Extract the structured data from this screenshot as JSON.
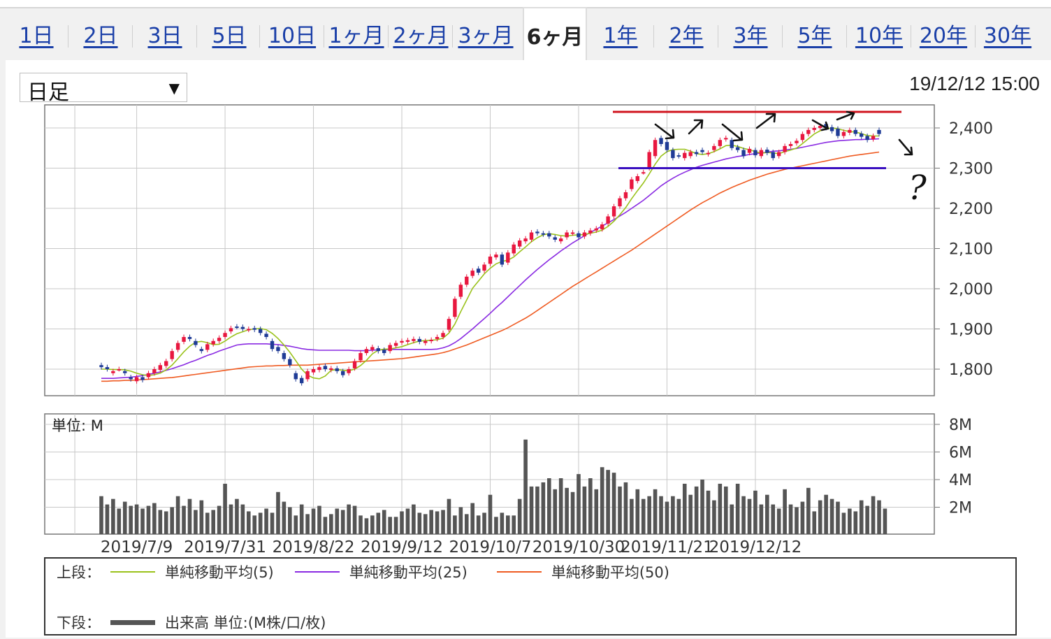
{
  "tabs": [
    "1日",
    "2日",
    "3日",
    "5日",
    "10日",
    "1ヶ月",
    "2ヶ月",
    "3ヶ月",
    "6ヶ月",
    "1年",
    "2年",
    "3年",
    "5年",
    "10年",
    "20年",
    "30年"
  ],
  "active_tab": "6ヶ月",
  "interval_select": {
    "value": "日足",
    "arrow": "▼"
  },
  "timestamp": "19/12/12 15:00",
  "volume_unit_label": "単位: M",
  "colors": {
    "up": "#e8173f",
    "down": "#1f3b96",
    "ma5": "#9ac21b",
    "ma25": "#8a2be2",
    "ma50": "#ef5b22",
    "volume": "#555555",
    "resistance": "#d0141e",
    "support": "#3a10c0",
    "annotation": "#111111"
  },
  "legend": {
    "upper_label": "上段：",
    "lower_label": "下段：",
    "ma5": "単純移動平均(5)",
    "ma25": "単純移動平均(25)",
    "ma50": "単純移動平均(50)",
    "volume": "出来高 単位:(M株/口/枚)"
  },
  "annotations": {
    "question": "?",
    "resistance_level": 2440,
    "support_level": 2300
  },
  "chart_data": [
    {
      "type": "candlestick",
      "y_ticks": [
        1800,
        1900,
        2000,
        2100,
        2200,
        2300,
        2400
      ],
      "y_tick_labels": [
        "1,800",
        "1,900",
        "2,000",
        "2,100",
        "2,200",
        "2,300",
        "2,400"
      ],
      "ylim": [
        1740,
        2460
      ],
      "x_tick_labels": [
        "2019/7/9",
        "2019/7/31",
        "2019/8/22",
        "2019/9/12",
        "2019/10/7",
        "2019/10/30",
        "2019/11/21",
        "2019/12/12"
      ],
      "x_tick_index": [
        6,
        21,
        36,
        51,
        66,
        81,
        96,
        111
      ],
      "grid": true,
      "closes": [
        1805,
        1800,
        1795,
        1800,
        1790,
        1775,
        1780,
        1773,
        1790,
        1800,
        1810,
        1820,
        1845,
        1865,
        1880,
        1875,
        1860,
        1845,
        1862,
        1870,
        1878,
        1890,
        1902,
        1905,
        1900,
        1900,
        1898,
        1890,
        1880,
        1850,
        1845,
        1825,
        1810,
        1775,
        1765,
        1795,
        1800,
        1805,
        1800,
        1802,
        1795,
        1785,
        1800,
        1820,
        1840,
        1850,
        1855,
        1845,
        1840,
        1860,
        1865,
        1870,
        1872,
        1875,
        1868,
        1870,
        1873,
        1880,
        1890,
        1925,
        1975,
        2010,
        2030,
        2045,
        2040,
        2060,
        2080,
        2085,
        2060,
        2090,
        2110,
        2120,
        2125,
        2140,
        2138,
        2135,
        2130,
        2122,
        2125,
        2140,
        2140,
        2128,
        2140,
        2145,
        2150,
        2160,
        2180,
        2205,
        2225,
        2240,
        2272,
        2280,
        2290,
        2340,
        2370,
        2360,
        2345,
        2325,
        2330,
        2338,
        2340,
        2335,
        2340,
        2338,
        2355,
        2370,
        2375,
        2350,
        2345,
        2330,
        2348,
        2332,
        2345,
        2338,
        2325,
        2340,
        2355,
        2360,
        2368,
        2385,
        2395,
        2400,
        2405,
        2400,
        2392,
        2380,
        2390,
        2395,
        2385,
        2378,
        2370,
        2380,
        2385
      ],
      "opens": [
        1810,
        1805,
        1790,
        1800,
        1795,
        1780,
        1770,
        1780,
        1780,
        1790,
        1798,
        1808,
        1825,
        1848,
        1868,
        1880,
        1870,
        1850,
        1848,
        1862,
        1870,
        1880,
        1894,
        1906,
        1905,
        1898,
        1902,
        1900,
        1888,
        1870,
        1855,
        1840,
        1825,
        1790,
        1778,
        1775,
        1792,
        1798,
        1808,
        1798,
        1802,
        1795,
        1790,
        1802,
        1822,
        1840,
        1848,
        1852,
        1848,
        1845,
        1858,
        1866,
        1868,
        1870,
        1875,
        1865,
        1870,
        1875,
        1880,
        1898,
        1930,
        1980,
        2010,
        2032,
        2050,
        2045,
        2062,
        2078,
        2085,
        2065,
        2088,
        2105,
        2118,
        2122,
        2142,
        2138,
        2138,
        2128,
        2118,
        2128,
        2138,
        2138,
        2130,
        2138,
        2145,
        2148,
        2162,
        2180,
        2205,
        2225,
        2248,
        2268,
        2290,
        2300,
        2330,
        2375,
        2365,
        2345,
        2332,
        2325,
        2330,
        2340,
        2345,
        2335,
        2345,
        2355,
        2372,
        2370,
        2352,
        2345,
        2338,
        2345,
        2330,
        2346,
        2340,
        2330,
        2340,
        2355,
        2362,
        2370,
        2385,
        2395,
        2400,
        2410,
        2402,
        2398,
        2380,
        2388,
        2395,
        2386,
        2380,
        2372,
        2395
      ],
      "ma5": [
        1800,
        1800,
        1799,
        1799,
        1798,
        1795,
        1790,
        1786,
        1784,
        1786,
        1790,
        1798,
        1810,
        1826,
        1843,
        1857,
        1867,
        1869,
        1866,
        1861,
        1862,
        1870,
        1880,
        1888,
        1893,
        1898,
        1900,
        1901,
        1898,
        1889,
        1876,
        1860,
        1842,
        1821,
        1800,
        1785,
        1778,
        1776,
        1783,
        1797,
        1799,
        1797,
        1796,
        1800,
        1809,
        1822,
        1838,
        1847,
        1850,
        1850,
        1853,
        1856,
        1861,
        1866,
        1870,
        1871,
        1872,
        1873,
        1877,
        1890,
        1912,
        1943,
        1972,
        2001,
        2019,
        2037,
        2051,
        2062,
        2068,
        2071,
        2079,
        2092,
        2104,
        2117,
        2127,
        2134,
        2137,
        2135,
        2132,
        2131,
        2133,
        2134,
        2135,
        2138,
        2141,
        2146,
        2155,
        2168,
        2184,
        2202,
        2224,
        2244,
        2263,
        2286,
        2310,
        2330,
        2341,
        2346,
        2347,
        2347,
        2342,
        2336,
        2334,
        2336,
        2341,
        2348,
        2356,
        2357,
        2354,
        2349,
        2346,
        2341,
        2337,
        2339,
        2338,
        2336,
        2341,
        2345,
        2350,
        2361,
        2373,
        2385,
        2393,
        2398,
        2400,
        2398,
        2394,
        2391,
        2390,
        2386,
        2381,
        2380,
        2380
      ],
      "ma25": [
        1777,
        1777,
        1777,
        1778,
        1779,
        1780,
        1782,
        1784,
        1787,
        1790,
        1793,
        1797,
        1801,
        1806,
        1811,
        1817,
        1822,
        1828,
        1834,
        1839,
        1845,
        1850,
        1855,
        1860,
        1862,
        1863,
        1863,
        1863,
        1863,
        1862,
        1861,
        1859,
        1857,
        1854,
        1851,
        1849,
        1848,
        1847,
        1847,
        1847,
        1847,
        1847,
        1847,
        1846,
        1846,
        1846,
        1847,
        1848,
        1848,
        1849,
        1849,
        1849,
        1849,
        1849,
        1849,
        1849,
        1849,
        1850,
        1853,
        1858,
        1866,
        1876,
        1888,
        1900,
        1913,
        1926,
        1939,
        1953,
        1966,
        1980,
        1994,
        2008,
        2022,
        2035,
        2048,
        2060,
        2072,
        2083,
        2094,
        2104,
        2114,
        2123,
        2132,
        2140,
        2148,
        2156,
        2164,
        2172,
        2181,
        2190,
        2200,
        2210,
        2220,
        2232,
        2244,
        2256,
        2266,
        2275,
        2283,
        2290,
        2296,
        2302,
        2307,
        2311,
        2315,
        2319,
        2323,
        2326,
        2329,
        2331,
        2334,
        2336,
        2338,
        2340,
        2342,
        2343,
        2345,
        2347,
        2349,
        2352,
        2355,
        2358,
        2361,
        2364,
        2366,
        2368,
        2369,
        2370,
        2371,
        2371,
        2372,
        2372,
        2373
      ],
      "ma50": [
        1770,
        1770,
        1771,
        1771,
        1772,
        1772,
        1773,
        1774,
        1775,
        1776,
        1777,
        1778,
        1779,
        1781,
        1783,
        1785,
        1787,
        1789,
        1791,
        1793,
        1795,
        1797,
        1799,
        1801,
        1803,
        1805,
        1806,
        1807,
        1808,
        1808,
        1809,
        1809,
        1810,
        1810,
        1810,
        1810,
        1811,
        1812,
        1813,
        1814,
        1815,
        1816,
        1817,
        1818,
        1819,
        1820,
        1821,
        1822,
        1823,
        1824,
        1825,
        1826,
        1828,
        1830,
        1832,
        1834,
        1836,
        1838,
        1841,
        1845,
        1850,
        1855,
        1860,
        1866,
        1872,
        1878,
        1884,
        1890,
        1896,
        1903,
        1911,
        1919,
        1927,
        1936,
        1946,
        1956,
        1966,
        1976,
        1986,
        1996,
        2006,
        2015,
        2024,
        2033,
        2042,
        2051,
        2060,
        2069,
        2078,
        2087,
        2096,
        2106,
        2116,
        2126,
        2136,
        2146,
        2156,
        2166,
        2176,
        2186,
        2196,
        2205,
        2214,
        2222,
        2230,
        2238,
        2245,
        2252,
        2258,
        2264,
        2270,
        2275,
        2280,
        2285,
        2289,
        2293,
        2297,
        2300,
        2303,
        2306,
        2309,
        2312,
        2315,
        2318,
        2321,
        2324,
        2327,
        2330,
        2332,
        2334,
        2336,
        2338,
        2340
      ]
    },
    {
      "type": "bar",
      "y_ticks": [
        2,
        4,
        6,
        8
      ],
      "y_tick_labels": [
        "2M",
        "4M",
        "6M",
        "8M"
      ],
      "ylim": [
        0,
        9
      ],
      "values": [
        2.8,
        2.2,
        2.6,
        1.9,
        2.4,
        2.1,
        2.2,
        1.9,
        2.1,
        2.3,
        1.8,
        1.7,
        2.0,
        2.8,
        2.1,
        2.6,
        1.8,
        2.5,
        1.6,
        1.8,
        2.1,
        3.7,
        2.2,
        2.6,
        2.2,
        1.7,
        1.4,
        1.6,
        1.9,
        1.6,
        3.1,
        2.4,
        2.0,
        1.4,
        2.2,
        1.5,
        1.9,
        2.1,
        1.3,
        1.5,
        1.9,
        1.8,
        2.2,
        2.1,
        1.4,
        1.2,
        1.4,
        1.6,
        1.8,
        1.3,
        1.3,
        1.7,
        1.9,
        2.2,
        1.6,
        1.5,
        1.8,
        1.7,
        1.8,
        2.6,
        1.4,
        2.0,
        1.5,
        2.3,
        1.4,
        1.6,
        2.9,
        1.3,
        1.6,
        1.4,
        1.4,
        2.6,
        6.9,
        3.5,
        3.5,
        3.8,
        4.1,
        3.3,
        4.1,
        3.4,
        3.1,
        4.4,
        3.5,
        4.1,
        3.3,
        4.9,
        4.7,
        4.5,
        3.5,
        3.8,
        2.6,
        3.3,
        2.6,
        2.8,
        3.3,
        2.8,
        2.4,
        2.8,
        2.6,
        3.7,
        2.9,
        3.5,
        4.0,
        3.2,
        2.5,
        3.7,
        3.5,
        2.2,
        3.7,
        2.8,
        2.6,
        3.2,
        2.2,
        2.9,
        2.2,
        1.9,
        3.3,
        2.2,
        2.0,
        2.4,
        3.4,
        1.7,
        2.5,
        2.9,
        2.6,
        2.4,
        1.6,
        1.9,
        1.7,
        2.5,
        2.1,
        2.8,
        2.5,
        1.9
      ],
      "title": "",
      "xlabel": "",
      "ylabel": ""
    }
  ]
}
